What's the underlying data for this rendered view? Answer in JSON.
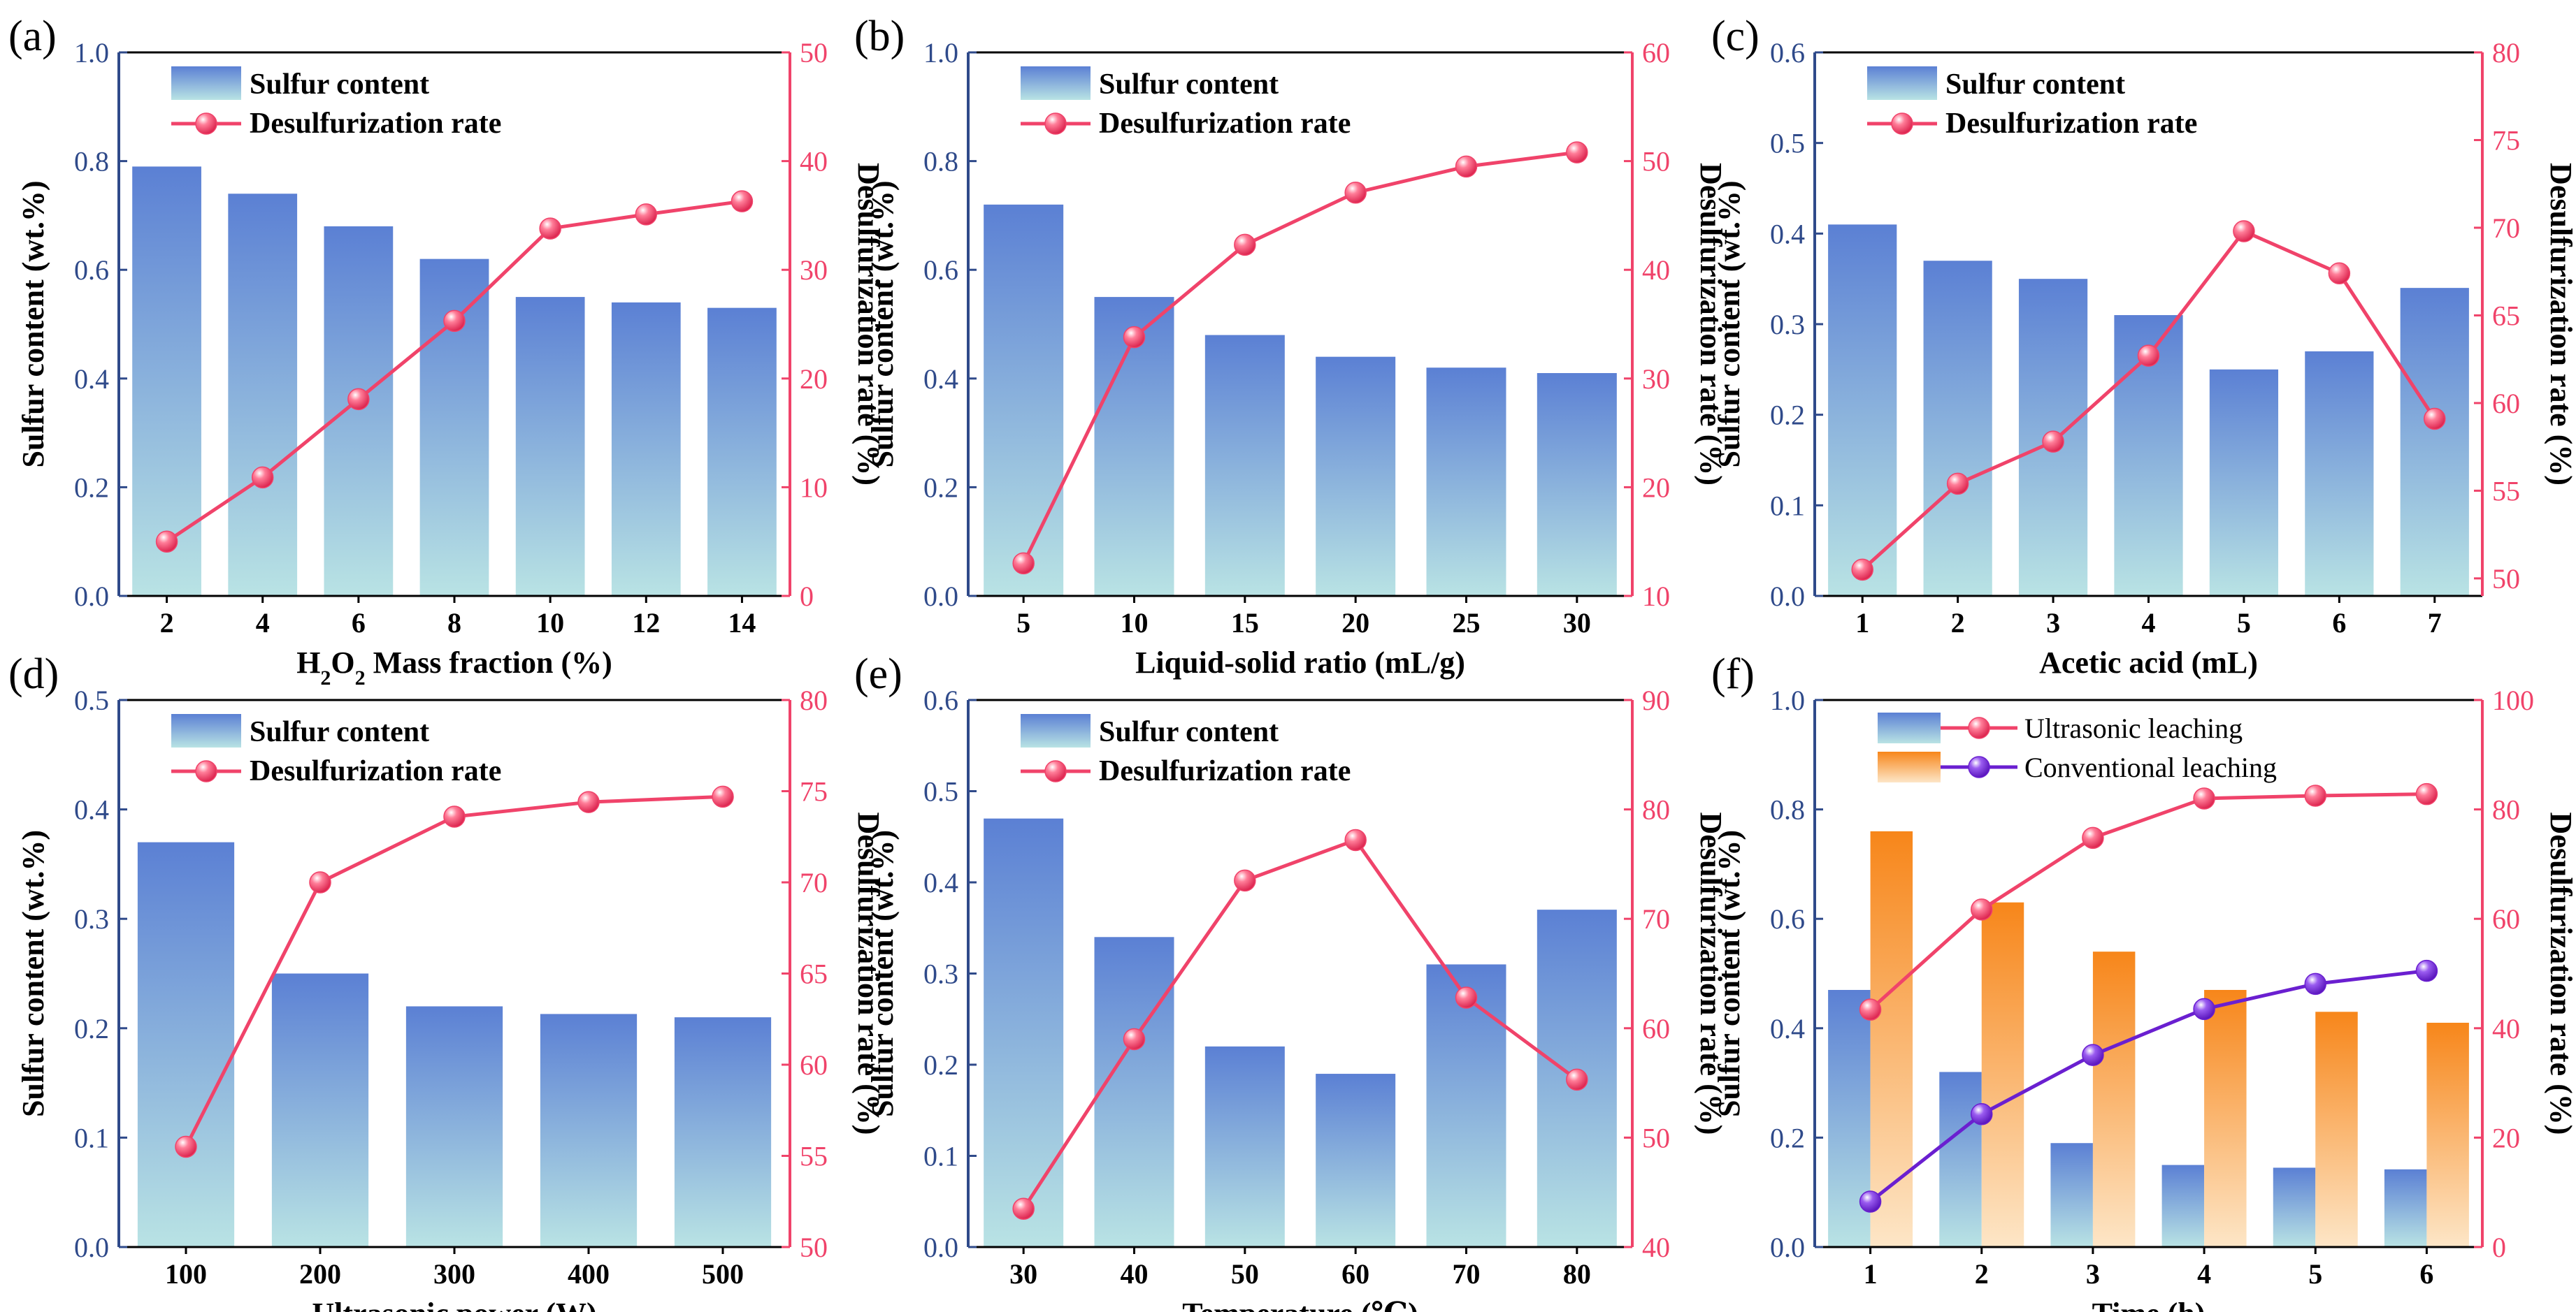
{
  "colors": {
    "bar_top": "#5b80d4",
    "bar_bottom": "#b9e3e4",
    "orange_top": "#f7861a",
    "orange_bottom": "#fde6c7",
    "red_line": "#f0436a",
    "purple_line": "#6a1fd0",
    "left_axis": "#2f4a8a"
  },
  "chart_data": [
    {
      "panel": "(a)",
      "type": "bar+line",
      "xlabel_parts": [
        "H",
        "2",
        "O",
        "2",
        " Mass fraction (%)"
      ],
      "ylabel": "Sulfur content (wt.%)",
      "y2label": "Desulfurization rate (%)",
      "categories": [
        "2",
        "4",
        "6",
        "8",
        "10",
        "12",
        "14"
      ],
      "ylim": [
        0,
        1.0
      ],
      "yticks": [
        "0.0",
        "0.2",
        "0.4",
        "0.6",
        "0.8",
        "1.0"
      ],
      "y2lim": [
        0,
        50
      ],
      "y2ticks": [
        "0",
        "10",
        "20",
        "30",
        "40",
        "50"
      ],
      "series": [
        {
          "name": "Sulfur content",
          "kind": "bar",
          "values": [
            0.79,
            0.74,
            0.68,
            0.62,
            0.55,
            0.54,
            0.53
          ]
        },
        {
          "name": "Desulfurization rate",
          "kind": "line",
          "axis": "right",
          "values": [
            5.0,
            10.9,
            18.1,
            25.3,
            33.8,
            35.1,
            36.3
          ]
        }
      ]
    },
    {
      "panel": "(b)",
      "type": "bar+line",
      "xlabel": "Liquid-solid ratio (mL/g)",
      "ylabel": "Sulfur content (wt.%)",
      "y2label": "Desulfurization rate (%)",
      "categories": [
        "5",
        "10",
        "15",
        "20",
        "25",
        "30"
      ],
      "ylim": [
        0,
        1.0
      ],
      "yticks": [
        "0.0",
        "0.2",
        "0.4",
        "0.6",
        "0.8",
        "1.0"
      ],
      "y2lim": [
        10,
        60
      ],
      "y2ticks": [
        "10",
        "20",
        "30",
        "40",
        "50",
        "60"
      ],
      "series": [
        {
          "name": "Sulfur content",
          "kind": "bar",
          "values": [
            0.72,
            0.55,
            0.48,
            0.44,
            0.42,
            0.41
          ]
        },
        {
          "name": "Desulfurization rate",
          "kind": "line",
          "axis": "right",
          "values": [
            13.0,
            33.8,
            42.3,
            47.1,
            49.5,
            50.8
          ]
        }
      ]
    },
    {
      "panel": "(c)",
      "type": "bar+line",
      "xlabel": "Acetic acid (mL)",
      "ylabel": "Sulfur content (wt.%)",
      "y2label": "Desulfurization rate (%)",
      "categories": [
        "1",
        "2",
        "3",
        "4",
        "5",
        "6",
        "7"
      ],
      "ylim": [
        0,
        0.6
      ],
      "yticks": [
        "0.0",
        "0.1",
        "0.2",
        "0.3",
        "0.4",
        "0.5",
        "0.6"
      ],
      "y2lim": [
        49,
        80
      ],
      "y2ticks": [
        "50",
        "55",
        "60",
        "65",
        "70",
        "75",
        "80"
      ],
      "series": [
        {
          "name": "Sulfur content",
          "kind": "bar",
          "values": [
            0.41,
            0.37,
            0.35,
            0.31,
            0.25,
            0.27,
            0.34
          ]
        },
        {
          "name": "Desulfurization rate",
          "kind": "line",
          "axis": "right",
          "values": [
            50.5,
            55.4,
            57.8,
            62.7,
            69.8,
            67.4,
            59.1
          ]
        }
      ]
    },
    {
      "panel": "(d)",
      "type": "bar+line",
      "xlabel": "Ultrasonic power (W)",
      "ylabel": "Sulfur content (wt.%)",
      "y2label": "Desulfurization rate (%)",
      "categories": [
        "100",
        "200",
        "300",
        "400",
        "500"
      ],
      "ylim": [
        0,
        0.5
      ],
      "yticks": [
        "0.0",
        "0.1",
        "0.2",
        "0.3",
        "0.4",
        "0.5"
      ],
      "y2lim": [
        50,
        80
      ],
      "y2ticks": [
        "50",
        "55",
        "60",
        "65",
        "70",
        "75",
        "80"
      ],
      "series": [
        {
          "name": "Sulfur content",
          "kind": "bar",
          "values": [
            0.37,
            0.25,
            0.22,
            0.213,
            0.21
          ]
        },
        {
          "name": "Desulfurization rate",
          "kind": "line",
          "axis": "right",
          "values": [
            55.5,
            70.0,
            73.6,
            74.4,
            74.7
          ]
        }
      ]
    },
    {
      "panel": "(e)",
      "type": "bar+line",
      "xlabel": "Temperature (℃)",
      "ylabel": "Sulfur content (wt.%)",
      "y2label": "Desulfurization rate (%)",
      "categories": [
        "30",
        "40",
        "50",
        "60",
        "70",
        "80"
      ],
      "ylim": [
        0,
        0.6
      ],
      "yticks": [
        "0.0",
        "0.1",
        "0.2",
        "0.3",
        "0.4",
        "0.5",
        "0.6"
      ],
      "y2lim": [
        40,
        90
      ],
      "y2ticks": [
        "40",
        "50",
        "60",
        "70",
        "80",
        "90"
      ],
      "series": [
        {
          "name": "Sulfur content",
          "kind": "bar",
          "values": [
            0.47,
            0.34,
            0.22,
            0.19,
            0.31,
            0.37
          ]
        },
        {
          "name": "Desulfurization rate",
          "kind": "line",
          "axis": "right",
          "values": [
            43.5,
            59.0,
            73.5,
            77.2,
            62.8,
            55.3
          ]
        }
      ]
    },
    {
      "panel": "(f)",
      "type": "grouped bar+line",
      "xlabel": "Time (h)",
      "ylabel": "Sulfur content (wt.%)",
      "y2label": "Desulfurization rate (%)",
      "categories": [
        "1",
        "2",
        "3",
        "4",
        "5",
        "6"
      ],
      "ylim": [
        0,
        1.0
      ],
      "yticks": [
        "0.0",
        "0.2",
        "0.4",
        "0.6",
        "0.8",
        "1.0"
      ],
      "y2lim": [
        0,
        100
      ],
      "y2ticks": [
        "0",
        "20",
        "40",
        "60",
        "80",
        "100"
      ],
      "series": [
        {
          "name": "Ultrasonic leaching",
          "kind": "bar",
          "values": [
            0.47,
            0.32,
            0.19,
            0.15,
            0.145,
            0.142
          ]
        },
        {
          "name": "Conventional leaching",
          "kind": "bar",
          "values": [
            0.76,
            0.63,
            0.54,
            0.47,
            0.43,
            0.41
          ]
        },
        {
          "name": "Ultrasonic leaching",
          "kind": "line",
          "axis": "right",
          "values": [
            43.4,
            61.7,
            74.8,
            82.0,
            82.5,
            82.8
          ]
        },
        {
          "name": "Conventional leaching",
          "kind": "line",
          "axis": "right",
          "values": [
            8.3,
            24.3,
            35.1,
            43.5,
            48.1,
            50.5
          ]
        }
      ]
    }
  ]
}
